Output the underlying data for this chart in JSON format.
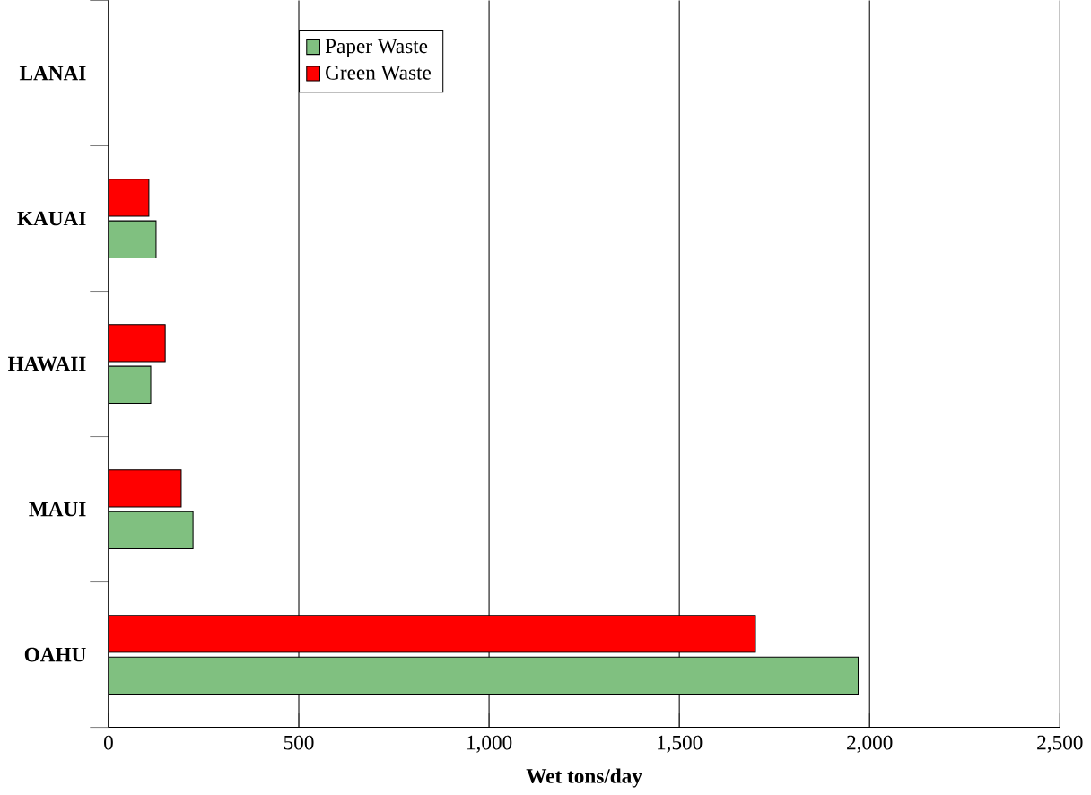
{
  "chart_data": {
    "type": "bar",
    "orientation": "horizontal",
    "categories": [
      "LANAI",
      "KAUAI",
      "HAWAII",
      "MAUI",
      "OAHU"
    ],
    "xlabel": "Wet tons/day",
    "series": [
      {
        "name": "Paper Waste",
        "color": "#80c080",
        "values": [
          null,
          125,
          111,
          222,
          1970
        ]
      },
      {
        "name": "Green Waste",
        "color": "#ff0000",
        "values": [
          null,
          106,
          149,
          191,
          1700
        ]
      }
    ],
    "xlim": [
      0,
      2500
    ],
    "xticks": [
      {
        "value": 0,
        "label": "0"
      },
      {
        "value": 500,
        "label": "500"
      },
      {
        "value": 1000,
        "label": "1,000"
      },
      {
        "value": 1500,
        "label": "1,500"
      },
      {
        "value": 2000,
        "label": "2,000"
      },
      {
        "value": 2500,
        "label": "2,500"
      }
    ],
    "grid": "x",
    "legend": "top left"
  }
}
